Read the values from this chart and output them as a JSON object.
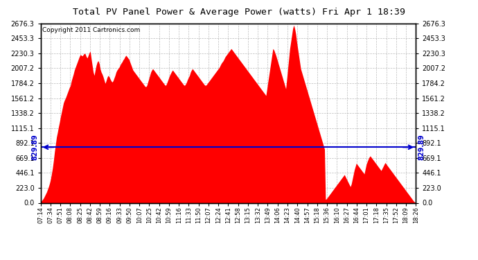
{
  "title": "Total PV Panel Power & Average Power (watts) Fri Apr 1 18:39",
  "copyright": "Copyright 2011 Cartronics.com",
  "average_power": 829.89,
  "y_max": 2676.3,
  "y_ticks": [
    0.0,
    223.0,
    446.1,
    669.1,
    892.1,
    1115.1,
    1338.2,
    1561.2,
    1784.2,
    2007.2,
    2230.3,
    2453.3,
    2676.3
  ],
  "x_labels": [
    "07:14",
    "07:34",
    "07:51",
    "08:08",
    "08:25",
    "08:42",
    "08:59",
    "09:16",
    "09:33",
    "09:50",
    "10:07",
    "10:25",
    "10:42",
    "10:59",
    "11:16",
    "11:33",
    "11:50",
    "12:07",
    "12:24",
    "12:41",
    "12:58",
    "13:15",
    "13:32",
    "13:49",
    "14:06",
    "14:23",
    "14:40",
    "14:57",
    "15:18",
    "15:36",
    "16:10",
    "16:27",
    "16:44",
    "17:01",
    "17:18",
    "17:35",
    "17:52",
    "18:09",
    "18:26"
  ],
  "area_color": "#FF0000",
  "line_color": "#0000CC",
  "bg_color": "#FFFFFF",
  "plot_bg_color": "#FFFFFF",
  "grid_color": "#AAAAAA",
  "title_color": "#000000",
  "border_color": "#000000",
  "pv_data": [
    20,
    30,
    50,
    70,
    100,
    130,
    160,
    200,
    240,
    290,
    350,
    430,
    520,
    630,
    760,
    870,
    980,
    1050,
    1130,
    1200,
    1280,
    1350,
    1420,
    1490,
    1530,
    1560,
    1600,
    1640,
    1680,
    1720,
    1750,
    1820,
    1870,
    1920,
    1980,
    2020,
    2060,
    2100,
    2140,
    2180,
    2210,
    2200,
    2190,
    2210,
    2230,
    2220,
    2180,
    2160,
    2200,
    2240,
    2260,
    2150,
    2050,
    1950,
    1900,
    1980,
    2050,
    2100,
    2120,
    2080,
    2000,
    1950,
    1920,
    1880,
    1830,
    1780,
    1820,
    1870,
    1900,
    1880,
    1850,
    1820,
    1800,
    1820,
    1860,
    1900,
    1950,
    1980,
    2000,
    2020,
    2050,
    2080,
    2100,
    2130,
    2150,
    2180,
    2200,
    2180,
    2160,
    2140,
    2100,
    2060,
    2020,
    1980,
    1960,
    1940,
    1920,
    1900,
    1880,
    1860,
    1840,
    1820,
    1800,
    1780,
    1760,
    1740,
    1730,
    1750,
    1800,
    1850,
    1900,
    1950,
    1980,
    2000,
    1980,
    1960,
    1940,
    1920,
    1900,
    1880,
    1860,
    1840,
    1820,
    1800,
    1780,
    1760,
    1750,
    1780,
    1820,
    1860,
    1900,
    1930,
    1960,
    1980,
    1960,
    1940,
    1920,
    1900,
    1880,
    1860,
    1840,
    1820,
    1800,
    1780,
    1760,
    1750,
    1770,
    1800,
    1840,
    1870,
    1900,
    1950,
    1980,
    2000,
    1980,
    1960,
    1940,
    1920,
    1900,
    1880,
    1860,
    1840,
    1820,
    1800,
    1780,
    1760,
    1750,
    1760,
    1780,
    1800,
    1820,
    1840,
    1860,
    1880,
    1900,
    1920,
    1940,
    1960,
    1980,
    2000,
    2020,
    2050,
    2080,
    2100,
    2120,
    2150,
    2180,
    2200,
    2220,
    2240,
    2260,
    2280,
    2300,
    2280,
    2260,
    2240,
    2220,
    2200,
    2180,
    2160,
    2140,
    2120,
    2100,
    2080,
    2060,
    2040,
    2020,
    2000,
    1980,
    1960,
    1940,
    1920,
    1900,
    1880,
    1860,
    1840,
    1820,
    1800,
    1780,
    1760,
    1740,
    1720,
    1700,
    1680,
    1660,
    1640,
    1620,
    1600,
    1700,
    1800,
    1900,
    2000,
    2100,
    2200,
    2300,
    2280,
    2240,
    2200,
    2150,
    2100,
    2050,
    2000,
    1950,
    1900,
    1850,
    1800,
    1750,
    1700,
    1850,
    2000,
    2150,
    2300,
    2400,
    2500,
    2600,
    2650,
    2600,
    2520,
    2400,
    2300,
    2200,
    2100,
    2000,
    1950,
    1900,
    1850,
    1800,
    1750,
    1700,
    1650,
    1600,
    1550,
    1500,
    1450,
    1400,
    1350,
    1300,
    1250,
    1200,
    1150,
    1100,
    1050,
    1000,
    950,
    900,
    850,
    800,
    50,
    60,
    80,
    100,
    120,
    140,
    160,
    180,
    200,
    220,
    240,
    260,
    280,
    300,
    320,
    340,
    360,
    380,
    400,
    420,
    390,
    360,
    330,
    300,
    270,
    240,
    280,
    350,
    420,
    490,
    540,
    590,
    570,
    550,
    530,
    510,
    490,
    470,
    450,
    430,
    500,
    570,
    610,
    650,
    680,
    700,
    680,
    660,
    640,
    620,
    600,
    580,
    560,
    540,
    520,
    500,
    480,
    510,
    540,
    570,
    600,
    580,
    560,
    540,
    520,
    500,
    480,
    460,
    440,
    420,
    400,
    380,
    360,
    340,
    320,
    300,
    280,
    260,
    240,
    220,
    200,
    180,
    160,
    140,
    120,
    100,
    80,
    60,
    40,
    20,
    10,
    5
  ]
}
